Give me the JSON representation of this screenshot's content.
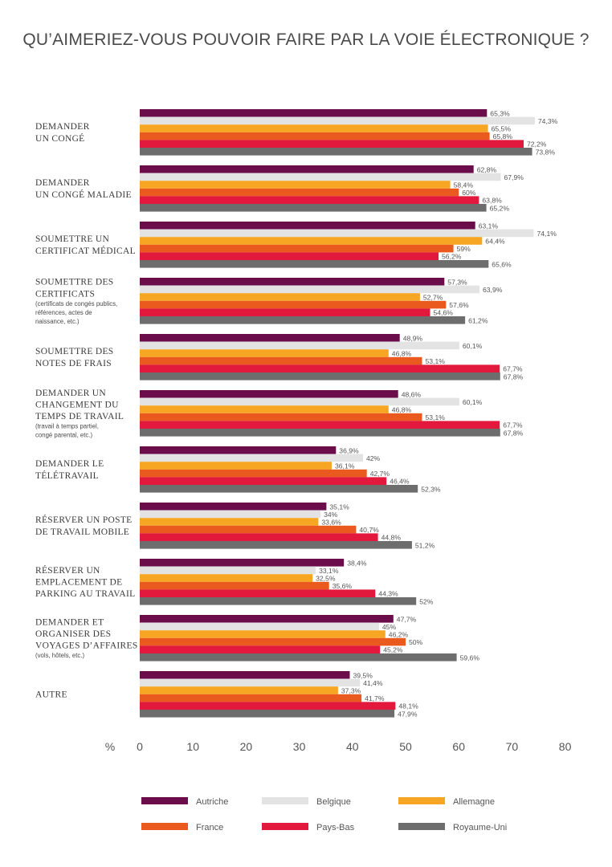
{
  "chart_data": {
    "type": "bar",
    "orientation": "horizontal",
    "title": "QU’AIMERIEZ-VOUS POUVOIR FAIRE PAR LA VOIE ÉLECTRONIQUE ?",
    "xlabel": "%",
    "xlim": [
      0,
      80
    ],
    "xticks": [
      0,
      10,
      20,
      30,
      40,
      50,
      60,
      70,
      80
    ],
    "grid": false,
    "legend_position": "bottom",
    "categories": [
      {
        "lines": [
          "DEMANDER",
          "UN CONGÉ"
        ],
        "note": []
      },
      {
        "lines": [
          "DEMANDER",
          "UN CONGÉ MALADIE"
        ],
        "note": []
      },
      {
        "lines": [
          "SOUMETTRE UN",
          "CERTIFICAT MÉDICAL"
        ],
        "note": []
      },
      {
        "lines": [
          "SOUMETTRE DES",
          "CERTIFICATS"
        ],
        "note": [
          "(certificats de congés publics,",
          "références, actes de",
          "naissance, etc.)"
        ]
      },
      {
        "lines": [
          "SOUMETTRE DES",
          "NOTES DE FRAIS"
        ],
        "note": []
      },
      {
        "lines": [
          "DEMANDER UN",
          "CHANGEMENT DU",
          "TEMPS DE TRAVAIL"
        ],
        "note": [
          "(travail à temps partiel,",
          "congé parental, etc.)"
        ]
      },
      {
        "lines": [
          "DEMANDER LE",
          "TÉLÉTRAVAIL"
        ],
        "note": []
      },
      {
        "lines": [
          "RÉSERVER UN POSTE",
          "DE TRAVAIL MOBILE"
        ],
        "note": []
      },
      {
        "lines": [
          "RÉSERVER UN",
          "EMPLACEMENT DE",
          "PARKING AU TRAVAIL"
        ],
        "note": []
      },
      {
        "lines": [
          "DEMANDER ET",
          "ORGANISER DES",
          "VOYAGES D’AFFAIRES"
        ],
        "note": [
          "(vols, hôtels, etc.)"
        ]
      },
      {
        "lines": [
          "AUTRE"
        ],
        "note": []
      }
    ],
    "series": [
      {
        "name": "Autriche",
        "color": "#6b0c4b",
        "values": [
          65.3,
          62.8,
          63.1,
          57.3,
          48.9,
          48.6,
          36.9,
          35.1,
          38.4,
          47.7,
          39.5
        ],
        "labels": [
          "65,3%",
          "62,8%",
          "63,1%",
          "57,3%",
          "48,9%",
          "48,6%",
          "36,9%",
          "35,1%",
          "38,4%",
          "47,7%",
          "39,5%"
        ]
      },
      {
        "name": "Belgique",
        "color": "#e3e3e3",
        "values": [
          74.3,
          67.9,
          74.1,
          63.9,
          60.1,
          60.1,
          42,
          34,
          33.1,
          45,
          41.4
        ],
        "labels": [
          "74,3%",
          "67,9%",
          "74,1%",
          "63,9%",
          "60,1%",
          "60,1%",
          "42%",
          "34%",
          "33,1%",
          "45%",
          "41,4%"
        ]
      },
      {
        "name": "Allemagne",
        "color": "#f6a623",
        "values": [
          65.5,
          58.4,
          64.4,
          52.7,
          46.8,
          46.8,
          36.1,
          33.6,
          32.5,
          46.2,
          37.3
        ],
        "labels": [
          "65,5%",
          "58,4%",
          "64,4%",
          "52,7%",
          "46,8%",
          "46,8%",
          "36,1%",
          "33,6%",
          "32,5%",
          "46,2%",
          "37,3%"
        ]
      },
      {
        "name": "France",
        "color": "#ea5a1e",
        "values": [
          65.8,
          60,
          59,
          57.6,
          53.1,
          53.1,
          42.7,
          40.7,
          35.6,
          50,
          41.7
        ],
        "labels": [
          "65,8%",
          "60%",
          "59%",
          "57,6%",
          "53,1%",
          "53,1%",
          "42,7%",
          "40,7%",
          "35,6%",
          "50%",
          "41,7%"
        ]
      },
      {
        "name": "Pays-Bas",
        "color": "#e2183d",
        "values": [
          72.2,
          63.8,
          56.2,
          54.6,
          67.7,
          67.7,
          46.4,
          44.8,
          44.3,
          45.2,
          48.1
        ],
        "labels": [
          "72,2%",
          "63,8%",
          "56,2%",
          "54,6%",
          "67,7%",
          "67,7%",
          "46,4%",
          "44,8%",
          "44,3%",
          "45,2%",
          "48,1%"
        ]
      },
      {
        "name": "Royaume-Uni",
        "color": "#6d6d6d",
        "values": [
          73.8,
          65.2,
          65.6,
          61.2,
          67.8,
          67.8,
          52.3,
          51.2,
          52,
          59.6,
          47.9
        ],
        "labels": [
          "73,8%",
          "65,2%",
          "65,6%",
          "61,2%",
          "67,8%",
          "67,8%",
          "52,3%",
          "51,2%",
          "52%",
          "59,6%",
          "47,9%"
        ]
      }
    ]
  }
}
